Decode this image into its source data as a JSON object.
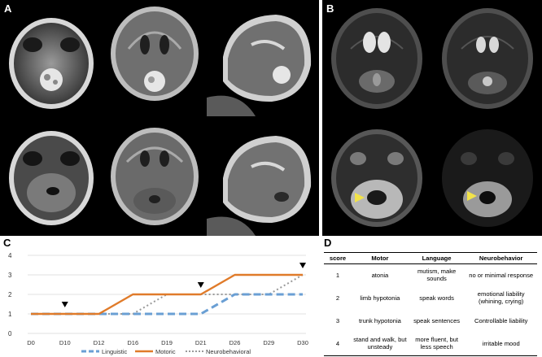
{
  "panels": {
    "a": "A",
    "b": "B",
    "c": "C",
    "d": "D"
  },
  "chart_data": {
    "type": "line",
    "categories": [
      "D0",
      "D10",
      "D12",
      "D16",
      "D19",
      "D21",
      "D26",
      "D29",
      "D30"
    ],
    "y_ticks": [
      "0",
      "1",
      "2",
      "3",
      "4"
    ],
    "ylim": [
      0,
      4
    ],
    "grid": true,
    "legend_position": "bottom",
    "series": [
      {
        "name": "Linguistic",
        "values": [
          1,
          1,
          1,
          1,
          1,
          1,
          2,
          2,
          2
        ],
        "color": "#6a9fd4",
        "style": "dashed"
      },
      {
        "name": "Motoric",
        "values": [
          1,
          1,
          1,
          2,
          2,
          2,
          3,
          3,
          3
        ],
        "color": "#e07b2a",
        "style": "solid"
      },
      {
        "name": "Neurobehavioral",
        "values": [
          1,
          1,
          1,
          1,
          2,
          2,
          2,
          2,
          3
        ],
        "color": "#9a9a9a",
        "style": "dotted"
      }
    ],
    "markers": [
      {
        "category": "D10",
        "value": 1
      },
      {
        "category": "D21",
        "value": 2
      },
      {
        "category": "D30",
        "value": 3
      }
    ]
  },
  "table": {
    "headers": [
      "score",
      "Motor",
      "Language",
      "Neurobehavior"
    ],
    "rows": [
      [
        "1",
        "atonia",
        "mutism, make sounds",
        "no or minimal response"
      ],
      [
        "2",
        "limb hypotonia",
        "speak words",
        "emotional liability (whining, crying)"
      ],
      [
        "3",
        "trunk hypotonia",
        "speak sentences",
        "Controllable liability"
      ],
      [
        "4",
        "stand and walk, but unsteady",
        "more fluent, but less speech",
        "irritable mood"
      ]
    ]
  },
  "colors": {
    "arrowhead": "#f2e34a",
    "enhancement": "#e6e6e6"
  }
}
